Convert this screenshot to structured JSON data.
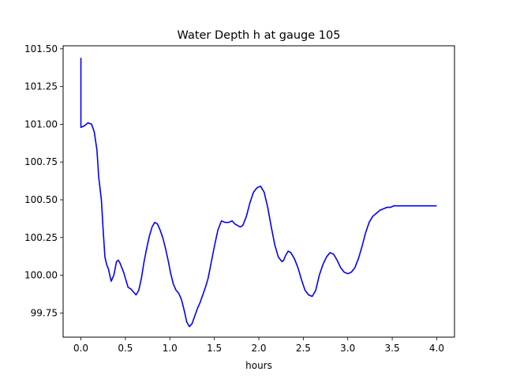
{
  "chart_data": {
    "type": "line",
    "title": "Water Depth h at gauge 105",
    "xlabel": "hours",
    "ylabel": "",
    "xlim": [
      -0.2,
      4.2
    ],
    "ylim": [
      99.59,
      101.52
    ],
    "xticks": [
      0.0,
      0.5,
      1.0,
      1.5,
      2.0,
      2.5,
      3.0,
      3.5,
      4.0
    ],
    "xtick_labels": [
      "0.0",
      "0.5",
      "1.0",
      "1.5",
      "2.0",
      "2.5",
      "3.0",
      "3.5",
      "4.0"
    ],
    "yticks": [
      99.75,
      100.0,
      100.25,
      100.5,
      100.75,
      101.0,
      101.25,
      101.5
    ],
    "ytick_labels": [
      "99.75",
      "100.00",
      "100.25",
      "100.50",
      "100.75",
      "101.00",
      "101.25",
      "101.50"
    ],
    "grid": false,
    "series": [
      {
        "color": "#0000ff",
        "x": [
          0.0,
          0.0,
          0.0,
          0.04,
          0.08,
          0.12,
          0.15,
          0.18,
          0.2,
          0.23,
          0.25,
          0.27,
          0.29,
          0.31,
          0.34,
          0.37,
          0.4,
          0.42,
          0.44,
          0.46,
          0.48,
          0.5,
          0.53,
          0.56,
          0.59,
          0.62,
          0.65,
          0.68,
          0.71,
          0.74,
          0.77,
          0.8,
          0.83,
          0.86,
          0.89,
          0.92,
          0.95,
          0.98,
          1.01,
          1.04,
          1.07,
          1.1,
          1.13,
          1.16,
          1.19,
          1.22,
          1.25,
          1.28,
          1.31,
          1.34,
          1.37,
          1.4,
          1.43,
          1.46,
          1.5,
          1.54,
          1.58,
          1.62,
          1.66,
          1.7,
          1.73,
          1.76,
          1.79,
          1.82,
          1.86,
          1.9,
          1.94,
          1.98,
          2.02,
          2.06,
          2.1,
          2.14,
          2.18,
          2.22,
          2.26,
          2.28,
          2.3,
          2.33,
          2.36,
          2.4,
          2.44,
          2.48,
          2.52,
          2.56,
          2.6,
          2.64,
          2.68,
          2.72,
          2.76,
          2.8,
          2.84,
          2.88,
          2.92,
          2.96,
          3.0,
          3.04,
          3.08,
          3.12,
          3.16,
          3.2,
          3.24,
          3.28,
          3.32,
          3.36,
          3.4,
          3.44,
          3.48,
          3.52,
          3.56,
          3.6,
          3.64,
          3.68,
          3.72,
          3.76,
          3.8,
          3.84,
          3.88,
          3.92,
          3.96,
          4.0
        ],
        "y": [
          101.44,
          101.2,
          100.98,
          100.99,
          101.01,
          101.0,
          100.95,
          100.83,
          100.65,
          100.5,
          100.3,
          100.12,
          100.07,
          100.04,
          99.96,
          100.0,
          100.09,
          100.1,
          100.08,
          100.05,
          100.02,
          99.98,
          99.92,
          99.91,
          99.89,
          99.87,
          99.9,
          99.98,
          100.09,
          100.18,
          100.26,
          100.32,
          100.35,
          100.34,
          100.3,
          100.25,
          100.18,
          100.1,
          100.01,
          99.94,
          99.9,
          99.88,
          99.84,
          99.77,
          99.69,
          99.66,
          99.68,
          99.73,
          99.78,
          99.82,
          99.87,
          99.92,
          99.98,
          100.07,
          100.19,
          100.3,
          100.36,
          100.35,
          100.35,
          100.36,
          100.34,
          100.33,
          100.32,
          100.33,
          100.39,
          100.48,
          100.55,
          100.58,
          100.59,
          100.55,
          100.45,
          100.32,
          100.2,
          100.12,
          100.09,
          100.1,
          100.13,
          100.16,
          100.15,
          100.11,
          100.05,
          99.97,
          99.9,
          99.87,
          99.86,
          99.9,
          100.0,
          100.07,
          100.12,
          100.15,
          100.14,
          100.1,
          100.05,
          100.02,
          100.01,
          100.02,
          100.05,
          100.11,
          100.19,
          100.28,
          100.35,
          100.39,
          100.41,
          100.43,
          100.44,
          100.45,
          100.45,
          100.46,
          100.46,
          100.46,
          100.46,
          100.46,
          100.46,
          100.46,
          100.46,
          100.46,
          100.46,
          100.46,
          100.46,
          100.46
        ]
      }
    ]
  }
}
